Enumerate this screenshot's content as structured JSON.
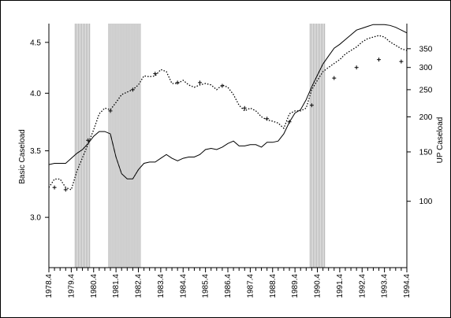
{
  "chart_data": {
    "type": "line",
    "title": "",
    "xlabel": "",
    "ylabel_left": "Basic Caseload",
    "ylabel_right": "UP Caseload",
    "left_axis": {
      "scale": "log",
      "ylim": [
        2.67,
        4.7
      ],
      "ticks": [
        3.0,
        3.5,
        4.0,
        4.5
      ],
      "tick_labels": [
        "3.0",
        "3.5",
        "4.0",
        "4.5"
      ]
    },
    "right_axis": {
      "scale": "log",
      "ylim": [
        58,
        430
      ],
      "ticks": [
        100,
        150,
        200,
        250,
        300,
        350
      ],
      "tick_labels": [
        "100",
        "150",
        "200",
        "250",
        "300",
        "350"
      ]
    },
    "x_tick_labels": [
      "1978.4",
      "1979.4",
      "1980.4",
      "1981.4",
      "1982.4",
      "1983.4",
      "1984.4",
      "1985.4",
      "1986.4",
      "1987.4",
      "1988.4",
      "1989.4",
      "1990.4",
      "1991.4",
      "1992.4",
      "1993.4",
      "1994.4"
    ],
    "x_range": [
      "1978.4",
      "1994.4"
    ],
    "recessions": [
      {
        "start": "1980.1",
        "end": "1980.3"
      },
      {
        "start": "1981.3",
        "end": "1982.4"
      },
      {
        "start": "1990.3",
        "end": "1991.1"
      }
    ],
    "series": [
      {
        "name": "Basic Caseload",
        "axis": "left",
        "style": "solid",
        "color": "#000000",
        "x": [
          "1978.4",
          "1979.1",
          "1979.2",
          "1979.3",
          "1979.4",
          "1980.1",
          "1980.2",
          "1980.3",
          "1980.4",
          "1981.1",
          "1981.2",
          "1981.3",
          "1981.4",
          "1982.1",
          "1982.2",
          "1982.3",
          "1982.4",
          "1983.1",
          "1983.2",
          "1983.3",
          "1983.4",
          "1984.1",
          "1984.2",
          "1984.3",
          "1984.4",
          "1985.1",
          "1985.2",
          "1985.3",
          "1985.4",
          "1986.1",
          "1986.2",
          "1986.3",
          "1986.4",
          "1987.1",
          "1987.2",
          "1987.3",
          "1987.4",
          "1988.1",
          "1988.2",
          "1988.3",
          "1988.4",
          "1989.1",
          "1989.2",
          "1989.3",
          "1989.4",
          "1990.1",
          "1990.2",
          "1990.3",
          "1990.4",
          "1991.1",
          "1991.2",
          "1991.3",
          "1991.4",
          "1992.1",
          "1992.2",
          "1992.3",
          "1992.4",
          "1993.1",
          "1993.2",
          "1993.3",
          "1993.4",
          "1994.1",
          "1994.2",
          "1994.3",
          "1994.4"
        ],
        "values": [
          3.39,
          3.4,
          3.4,
          3.4,
          3.44,
          3.48,
          3.51,
          3.56,
          3.62,
          3.66,
          3.66,
          3.64,
          3.45,
          3.32,
          3.28,
          3.28,
          3.35,
          3.4,
          3.41,
          3.41,
          3.44,
          3.47,
          3.44,
          3.42,
          3.44,
          3.45,
          3.45,
          3.47,
          3.51,
          3.52,
          3.51,
          3.53,
          3.56,
          3.58,
          3.54,
          3.54,
          3.55,
          3.55,
          3.53,
          3.57,
          3.57,
          3.58,
          3.64,
          3.74,
          3.82,
          3.85,
          3.94,
          4.06,
          4.17,
          4.28,
          4.36,
          4.44,
          4.48,
          4.53,
          4.58,
          4.63,
          4.65,
          4.67,
          4.69,
          4.69,
          4.69,
          4.68,
          4.66,
          4.63,
          4.6
        ]
      },
      {
        "name": "UP Caseload",
        "axis": "right",
        "style": "dotted",
        "color": "#000000",
        "x": [
          "1978.4",
          "1979.1",
          "1979.2",
          "1979.3",
          "1979.4",
          "1980.1",
          "1980.2",
          "1980.3",
          "1980.4",
          "1981.1",
          "1981.2",
          "1981.3",
          "1981.4",
          "1982.1",
          "1982.2",
          "1982.3",
          "1982.4",
          "1983.1",
          "1983.2",
          "1983.3",
          "1983.4",
          "1984.1",
          "1984.2",
          "1984.3",
          "1984.4",
          "1985.1",
          "1985.2",
          "1985.3",
          "1985.4",
          "1986.1",
          "1986.2",
          "1986.3",
          "1986.4",
          "1987.1",
          "1987.2",
          "1987.3",
          "1987.4",
          "1988.1",
          "1988.2",
          "1988.3",
          "1988.4",
          "1989.1",
          "1989.2",
          "1989.3",
          "1989.4",
          "1990.1",
          "1990.2",
          "1990.3",
          "1990.4",
          "1991.1",
          "1991.2",
          "1991.3",
          "1991.4",
          "1992.1",
          "1992.2",
          "1992.3",
          "1992.4",
          "1993.1",
          "1993.2",
          "1993.3",
          "1993.4",
          "1994.1",
          "1994.2",
          "1994.3",
          "1994.4"
        ],
        "values": [
          112,
          120,
          120,
          112,
          110,
          128,
          143,
          160,
          180,
          205,
          215,
          212,
          225,
          240,
          245,
          250,
          260,
          280,
          278,
          280,
          295,
          290,
          263,
          263,
          270,
          260,
          255,
          260,
          263,
          260,
          250,
          260,
          255,
          240,
          220,
          210,
          215,
          210,
          200,
          195,
          193,
          190,
          182,
          205,
          210,
          210,
          215,
          250,
          270,
          290,
          300,
          310,
          320,
          335,
          345,
          355,
          370,
          380,
          385,
          390,
          385,
          370,
          360,
          350,
          345
        ]
      },
      {
        "name": "",
        "axis": "right",
        "style": "markers",
        "marker": "+",
        "color": "#000000",
        "x": [
          "1979.1",
          "1979.3",
          "1980.3",
          "1981.3",
          "1982.3",
          "1983.3",
          "1984.3",
          "1985.3",
          "1986.3",
          "1987.3",
          "1988.3",
          "1989.3",
          "1990.3",
          "1991.3",
          "1992.3",
          "1993.3",
          "1994.3"
        ],
        "values": [
          112,
          110,
          165,
          210,
          250,
          285,
          265,
          265,
          258,
          215,
          197,
          192,
          220,
          275,
          300,
          320,
          315
        ]
      }
    ]
  }
}
